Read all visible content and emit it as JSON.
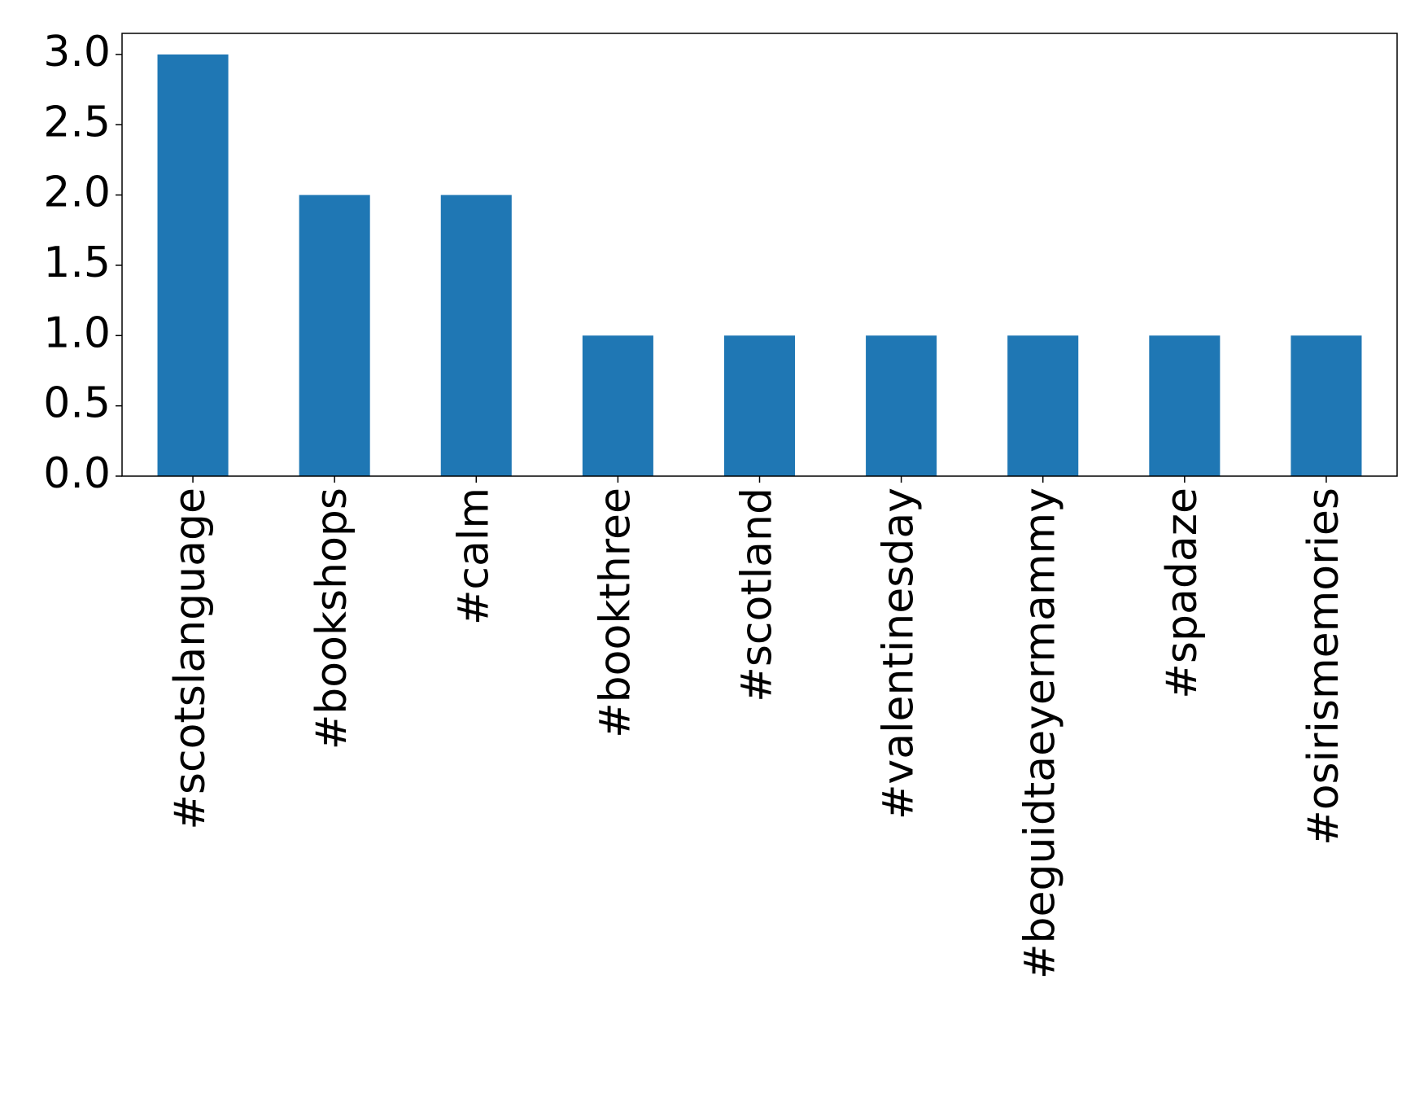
{
  "chart_data": {
    "type": "bar",
    "categories": [
      "#scotslanguage",
      "#bookshops",
      "#calm",
      "#bookthree",
      "#scotland",
      "#valentinesday",
      "#beguidtaeyermammy",
      "#spadaze",
      "#osirismemories"
    ],
    "values": [
      3,
      2,
      2,
      1,
      1,
      1,
      1,
      1,
      1
    ],
    "color": "#1f77b4",
    "ylim": [
      0,
      3.15
    ],
    "yticks": [
      {
        "value": 0,
        "label": "0.0"
      },
      {
        "value": 0.5,
        "label": "0.5"
      },
      {
        "value": 1,
        "label": "1.0"
      },
      {
        "value": 1.5,
        "label": "1.5"
      },
      {
        "value": 2,
        "label": "2.0"
      },
      {
        "value": 2.5,
        "label": "2.5"
      },
      {
        "value": 3,
        "label": "3.0"
      }
    ],
    "grid": false
  }
}
